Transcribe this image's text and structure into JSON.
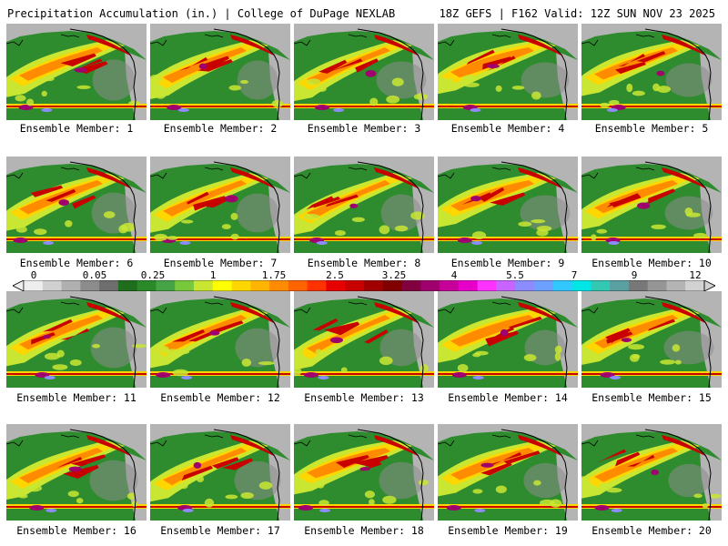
{
  "header": {
    "title": "Precipitation Accumulation (in.) | College of DuPage NEXLAB",
    "run_info": "18Z GEFS | F162 Valid: 12Z SUN NOV 23 2025"
  },
  "members": [
    "Ensemble Member: 1",
    "Ensemble Member: 2",
    "Ensemble Member: 3",
    "Ensemble Member: 4",
    "Ensemble Member: 5",
    "Ensemble Member: 6",
    "Ensemble Member: 7",
    "Ensemble Member: 8",
    "Ensemble Member: 9",
    "Ensemble Member: 10",
    "Ensemble Member: 11",
    "Ensemble Member: 12",
    "Ensemble Member: 13",
    "Ensemble Member: 14",
    "Ensemble Member: 15",
    "Ensemble Member: 16",
    "Ensemble Member: 17",
    "Ensemble Member: 18",
    "Ensemble Member: 19",
    "Ensemble Member: 20"
  ],
  "colorbar": {
    "labels": [
      "0",
      "0.05",
      "0.25",
      "1",
      "1.75",
      "2.5",
      "3.25",
      "4",
      "5.5",
      "7",
      "9",
      "12"
    ],
    "colors": [
      "#eeeeee",
      "#d0d0d0",
      "#b0b0b0",
      "#8c8c8c",
      "#6e6e6e",
      "#1e6e1e",
      "#2a8a2a",
      "#46a446",
      "#78c83c",
      "#c8e632",
      "#ffff00",
      "#ffd700",
      "#ffb400",
      "#ff8c00",
      "#ff6400",
      "#ff3200",
      "#e60000",
      "#c80000",
      "#a00000",
      "#800000",
      "#800040",
      "#a0006e",
      "#c8009b",
      "#e600c8",
      "#ff32ff",
      "#c864ff",
      "#8c8cff",
      "#6ea0ff",
      "#32c8ff",
      "#00e6e6",
      "#32c8b4",
      "#5aa0a0",
      "#787878",
      "#969696",
      "#b4b4b4",
      "#d2d2d2"
    ]
  },
  "map_colors": {
    "ocean_dry": "#2e8b2e",
    "light": "#c8e632",
    "moderate": "#ffd700",
    "heavy": "#ff8c00",
    "very_heavy": "#c80000",
    "extreme": "#a0006e",
    "land_gray": "#b4b4b4",
    "coast": "#000000"
  }
}
